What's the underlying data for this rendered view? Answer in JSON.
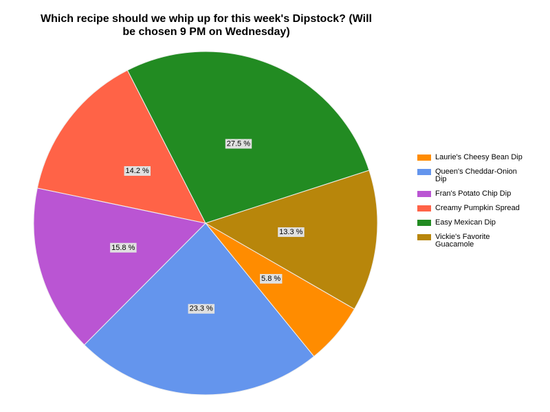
{
  "chart_data": {
    "type": "pie",
    "title": "Which recipe should we whip up for this week's Dipstock? (Will be chosen 9 PM on Wednesday)",
    "series": [
      {
        "name": "Laurie's Cheesy Bean Dip",
        "color": "#ff8c00",
        "values": [
          5.8
        ],
        "value_labels": [
          "5.8 %"
        ]
      },
      {
        "name": "Queen's Cheddar-Onion Dip",
        "color": "#6495ed",
        "values": [
          23.3
        ],
        "value_labels": [
          "23.3 %"
        ]
      },
      {
        "name": "Fran's Potato Chip Dip",
        "color": "#ba55d3",
        "values": [
          15.8
        ],
        "value_labels": [
          "15.8 %"
        ]
      },
      {
        "name": "Creamy Pumpkin Spread",
        "color": "#ff6347",
        "values": [
          14.2
        ],
        "value_labels": [
          "14.2 %"
        ]
      },
      {
        "name": "Easy Mexican Dip",
        "color": "#228b22",
        "values": [
          27.5
        ],
        "value_labels": [
          "27.5 %"
        ]
      },
      {
        "name": "Vickie's Favorite Guacamole",
        "color": "#b8860b",
        "values": [
          13.3
        ],
        "value_labels": [
          "13.3 %"
        ]
      }
    ]
  }
}
